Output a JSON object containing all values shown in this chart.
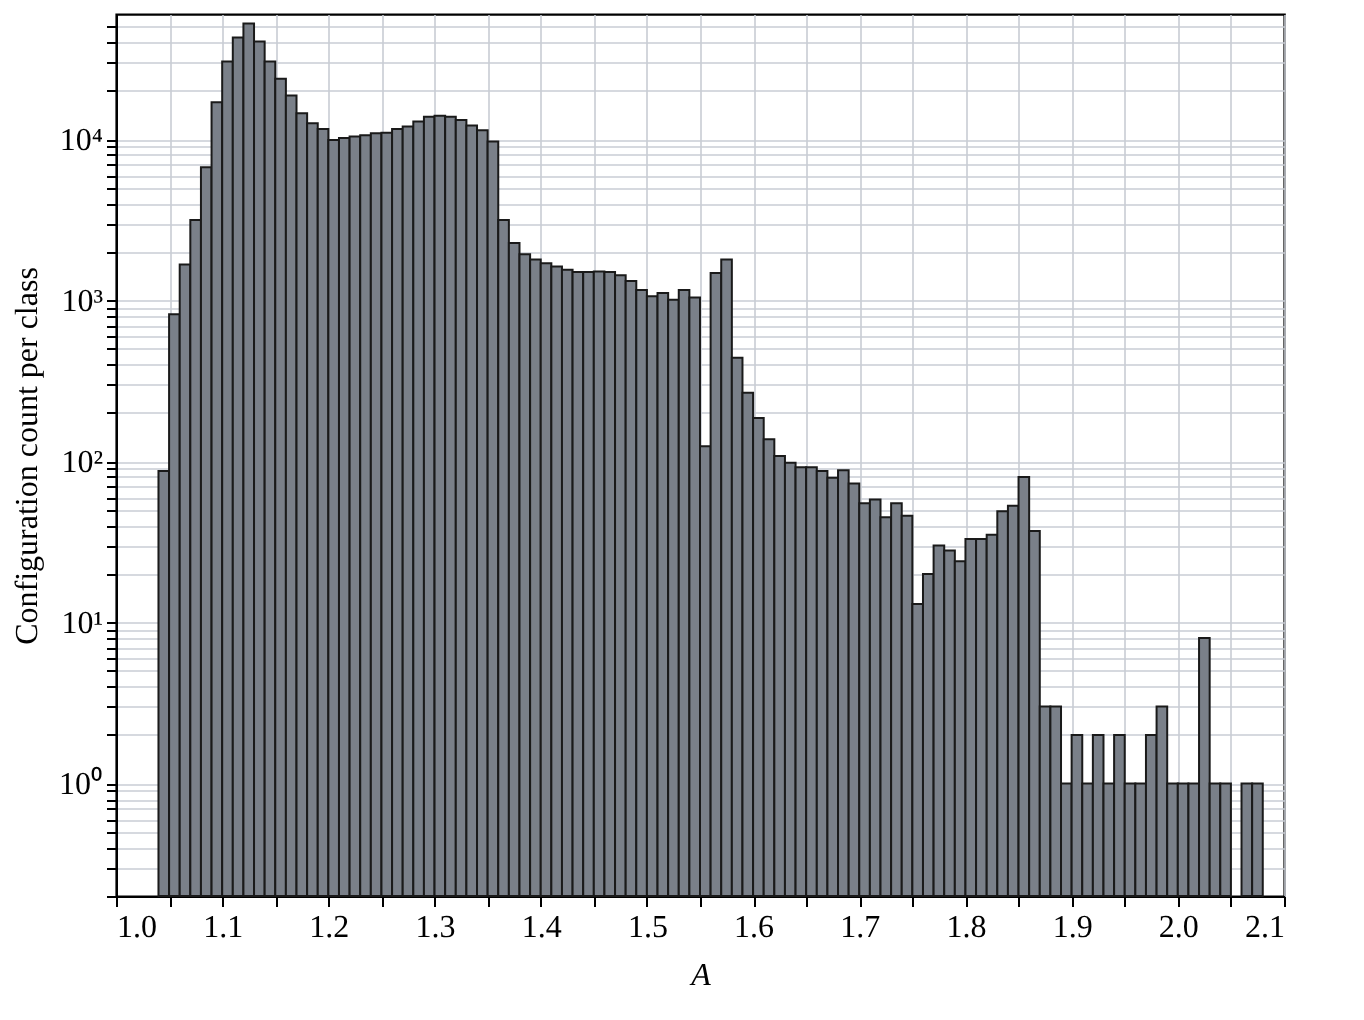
{
  "chart_data": {
    "type": "histogram",
    "xlabel": "A",
    "ylabel": "Configuration count per class",
    "bins": [
      1.04,
      1.05,
      1.06,
      1.07,
      1.08,
      1.09,
      1.1,
      1.11,
      1.12,
      1.13,
      1.14,
      1.15,
      1.16,
      1.17,
      1.18,
      1.19,
      1.2,
      1.21,
      1.22,
      1.23,
      1.24,
      1.25,
      1.26,
      1.27,
      1.28,
      1.29,
      1.3,
      1.31,
      1.32,
      1.33,
      1.34,
      1.35,
      1.36,
      1.37,
      1.38,
      1.39,
      1.4,
      1.41,
      1.42,
      1.43,
      1.44,
      1.45,
      1.46,
      1.47,
      1.48,
      1.49,
      1.5,
      1.51,
      1.52,
      1.53,
      1.54,
      1.55,
      1.56,
      1.57,
      1.58,
      1.59,
      1.6,
      1.61,
      1.62,
      1.63,
      1.64,
      1.65,
      1.66,
      1.67,
      1.68,
      1.69,
      1.7,
      1.71,
      1.72,
      1.73,
      1.74,
      1.75,
      1.76,
      1.77,
      1.78,
      1.79,
      1.8,
      1.81,
      1.82,
      1.83,
      1.84,
      1.85,
      1.86,
      1.87,
      1.88,
      1.89,
      1.9,
      1.91,
      1.92,
      1.93,
      1.94,
      1.95,
      1.96,
      1.97,
      1.98,
      1.99,
      2.0,
      2.01,
      2.02,
      2.03,
      2.04,
      2.05,
      2.06,
      2.07,
      2.08
    ],
    "values": [
      87,
      820,
      1670,
      3160,
      6700,
      17000,
      30400,
      42800,
      52300,
      40500,
      30400,
      23800,
      18700,
      14500,
      12600,
      11600,
      9900,
      10200,
      10400,
      10600,
      10900,
      11000,
      11600,
      12000,
      12900,
      13800,
      14000,
      13800,
      13200,
      12200,
      11400,
      9700,
      3160,
      2270,
      1930,
      1790,
      1700,
      1620,
      1550,
      1500,
      1500,
      1510,
      1500,
      1430,
      1320,
      1160,
      1060,
      1110,
      1010,
      1160,
      1040,
      124,
      1480,
      1790,
      440,
      267,
      186,
      137,
      108,
      98,
      92,
      92,
      87,
      79,
      88,
      73,
      55,
      58,
      45,
      55,
      46,
      13,
      20,
      30,
      28,
      24,
      33,
      33,
      35,
      49,
      53,
      80,
      37,
      3,
      3,
      1,
      2,
      1,
      2,
      1,
      2,
      1,
      1,
      2,
      3,
      1,
      1,
      1,
      8,
      1,
      1,
      null,
      1,
      1
    ],
    "color": "#7a8089",
    "log": "y",
    "grid": true,
    "xlim": [
      1.0,
      2.1
    ],
    "ylim": [
      0.2,
      60000
    ],
    "xticks": [
      {
        "value": 1.0,
        "label": "1.0"
      },
      {
        "value": 1.05,
        "label": null
      },
      {
        "value": 1.1,
        "label": "1.1"
      },
      {
        "value": 1.15,
        "label": null
      },
      {
        "value": 1.2,
        "label": "1.2"
      },
      {
        "value": 1.25,
        "label": null
      },
      {
        "value": 1.3,
        "label": "1.3"
      },
      {
        "value": 1.35,
        "label": null
      },
      {
        "value": 1.4,
        "label": "1.4"
      },
      {
        "value": 1.45,
        "label": null
      },
      {
        "value": 1.5,
        "label": "1.5"
      },
      {
        "value": 1.55,
        "label": null
      },
      {
        "value": 1.6,
        "label": "1.6"
      },
      {
        "value": 1.65,
        "label": null
      },
      {
        "value": 1.7,
        "label": "1.7"
      },
      {
        "value": 1.75,
        "label": null
      },
      {
        "value": 1.8,
        "label": "1.8"
      },
      {
        "value": 1.85,
        "label": null
      },
      {
        "value": 1.9,
        "label": "1.9"
      },
      {
        "value": 1.95,
        "label": null
      },
      {
        "value": 2.0,
        "label": "2.0"
      },
      {
        "value": 2.05,
        "label": null
      },
      {
        "value": 2.1,
        "label": "2.1"
      }
    ],
    "yticks": [
      {
        "value": 0.2,
        "label": null
      },
      {
        "value": 0.3,
        "label": null
      },
      {
        "value": 0.4,
        "label": null
      },
      {
        "value": 0.5,
        "label": null
      },
      {
        "value": 0.6,
        "label": null
      },
      {
        "value": 0.7,
        "label": null
      },
      {
        "value": 0.8,
        "label": null
      },
      {
        "value": 0.9,
        "label": null
      },
      {
        "value": 1,
        "label": "10⁰"
      },
      {
        "value": 2,
        "label": null
      },
      {
        "value": 3,
        "label": null
      },
      {
        "value": 4,
        "label": null
      },
      {
        "value": 5,
        "label": null
      },
      {
        "value": 6,
        "label": null
      },
      {
        "value": 7,
        "label": null
      },
      {
        "value": 8,
        "label": null
      },
      {
        "value": 9,
        "label": null
      },
      {
        "value": 10,
        "label": "10¹"
      },
      {
        "value": 20,
        "label": null
      },
      {
        "value": 30,
        "label": null
      },
      {
        "value": 40,
        "label": null
      },
      {
        "value": 50,
        "label": null
      },
      {
        "value": 60,
        "label": null
      },
      {
        "value": 70,
        "label": null
      },
      {
        "value": 80,
        "label": null
      },
      {
        "value": 90,
        "label": null
      },
      {
        "value": 100,
        "label": "10²"
      },
      {
        "value": 200,
        "label": null
      },
      {
        "value": 300,
        "label": null
      },
      {
        "value": 400,
        "label": null
      },
      {
        "value": 500,
        "label": null
      },
      {
        "value": 600,
        "label": null
      },
      {
        "value": 700,
        "label": null
      },
      {
        "value": 800,
        "label": null
      },
      {
        "value": 900,
        "label": null
      },
      {
        "value": 1000,
        "label": "10³"
      },
      {
        "value": 2000,
        "label": null
      },
      {
        "value": 3000,
        "label": null
      },
      {
        "value": 4000,
        "label": null
      },
      {
        "value": 5000,
        "label": null
      },
      {
        "value": 6000,
        "label": null
      },
      {
        "value": 7000,
        "label": null
      },
      {
        "value": 8000,
        "label": null
      },
      {
        "value": 9000,
        "label": null
      },
      {
        "value": 10000,
        "label": "10⁴"
      },
      {
        "value": 20000,
        "label": null
      },
      {
        "value": 30000,
        "label": null
      },
      {
        "value": 40000,
        "label": null
      },
      {
        "value": 50000,
        "label": null
      }
    ]
  }
}
